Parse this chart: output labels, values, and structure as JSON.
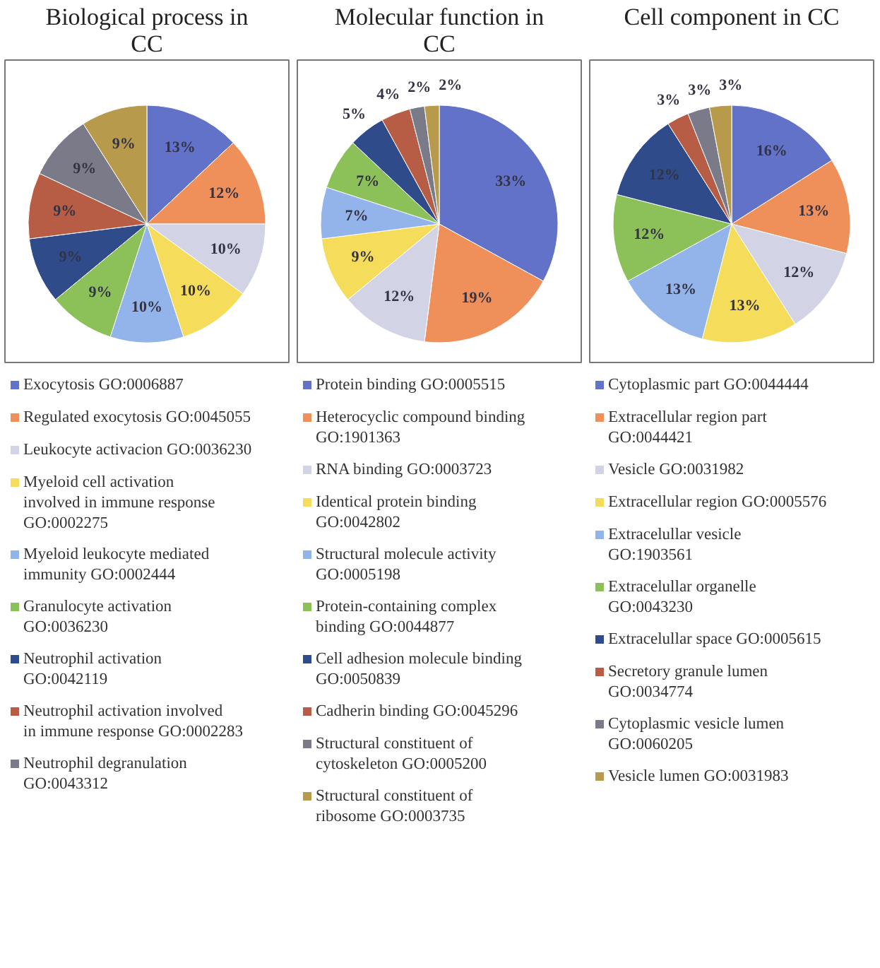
{
  "chart_data": [
    {
      "type": "pie",
      "title": "Biological process in CC",
      "legend": "bottom",
      "categories": [
        "Exocytosis GO:0006887",
        "Regulated exocytosis GO:0045055",
        "Leukocyte activacion GO:0036230",
        "Myeloid cell activation involved in immune response GO:0002275",
        "Myeloid leukocyte mediated immunity GO:0002444",
        "Granulocyte activation GO:0036230",
        "Neutrophil activation GO:0042119",
        "Neutrophil activation involved in immune response GO:0002283",
        "Neutrophil degranulation GO:0043312",
        null
      ],
      "values": [
        13,
        12,
        10,
        10,
        10,
        9,
        9,
        9,
        9,
        9
      ],
      "value_labels": [
        "13%",
        "12%",
        "10%",
        "10%",
        "10%",
        "9%",
        "9%",
        "9%",
        "9%",
        "9%"
      ],
      "colors": [
        "#6272c8",
        "#ef8f5a",
        "#d3d3e6",
        "#f5dc5a",
        "#92b4ea",
        "#8cc059",
        "#2f4b8a",
        "#b75c45",
        "#7a7a88",
        "#b89a4c"
      ]
    },
    {
      "type": "pie",
      "title": "Molecular function in CC",
      "legend": "bottom",
      "categories": [
        "Protein binding GO:0005515",
        "Heterocyclic compound binding GO:1901363",
        "RNA binding GO:0003723",
        "Identical protein binding GO:0042802",
        "Structural molecule activity GO:0005198",
        "Protein-containing complex binding GO:0044877",
        "Cell adhesion molecule binding GO:0050839",
        "Cadherin binding GO:0045296",
        "Structural constituent of cytoskeleton GO:0005200",
        "Structural constituent of ribosome GO:0003735"
      ],
      "values": [
        33,
        19,
        12,
        9,
        7,
        7,
        5,
        4,
        2,
        2
      ],
      "value_labels": [
        "33%",
        "19%",
        "12%",
        "9%",
        "7%",
        "7%",
        "5%",
        "4%",
        "2%",
        "2%"
      ],
      "colors": [
        "#6272c8",
        "#ef8f5a",
        "#d3d3e6",
        "#f5dc5a",
        "#92b4ea",
        "#8cc059",
        "#2f4b8a",
        "#b75c45",
        "#7a7a88",
        "#b89a4c"
      ]
    },
    {
      "type": "pie",
      "title": "Cell component in CC",
      "legend": "bottom",
      "categories": [
        "Cytoplasmic part GO:0044444",
        "Extracellular region part GO:0044421",
        "Vesicle GO:0031982",
        "Extracellular region GO:0005576",
        "Extracelullar vesicle GO:1903561",
        "Extracelullar organelle GO:0043230",
        "Extracelullar space GO:0005615",
        "Secretory granule lumen GO:0034774",
        "Cytoplasmic vesicle lumen GO:0060205",
        "Vesicle lumen GO:0031983"
      ],
      "values": [
        16,
        13,
        12,
        13,
        13,
        12,
        12,
        3,
        3,
        3
      ],
      "value_labels": [
        "16%",
        "13%",
        "12%",
        "13%",
        "13%",
        "12%",
        "12%",
        "3%",
        "3%",
        "3%"
      ],
      "colors": [
        "#6272c8",
        "#ef8f5a",
        "#d3d3e6",
        "#f5dc5a",
        "#92b4ea",
        "#8cc059",
        "#2f4b8a",
        "#b75c45",
        "#7a7a88",
        "#b89a4c"
      ]
    }
  ]
}
